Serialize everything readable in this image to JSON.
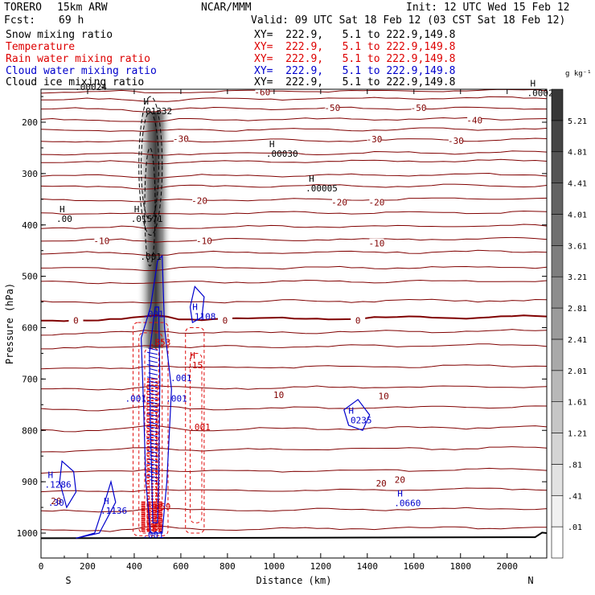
{
  "header": {
    "exp_name": "TORERO",
    "model": "15km ARW",
    "center": "NCAR/MMM",
    "init": "Init: 12 UTC Wed 15 Feb 12",
    "fcst_label": "Fcst:",
    "fcst_value": "69 h",
    "valid": "Valid: 09 UTC Sat 18 Feb 12 (03 CST Sat 18 Feb 12)"
  },
  "fields": [
    {
      "name": "Snow mixing ratio",
      "xy": "",
      "color": "#000000"
    },
    {
      "name": "Temperature",
      "xy": "XY=  222.9,   5.1 to 222.9,149.8",
      "color": "#dd0000"
    },
    {
      "name": "Rain water mixing ratio",
      "xy": "XY=  222.9,   5.1 to 222.9,149.8",
      "color": "#dd0000"
    },
    {
      "name": "Cloud water mixing ratio",
      "xy": "XY=  222.9,   5.1 to 222.9,149.8",
      "color": "#0000cc"
    },
    {
      "name": "Cloud ice mixing ratio",
      "xy": "XY=  222.9,   5.1 to 222.9,149.8",
      "color": "#000000"
    }
  ],
  "xy_first": "XY=  222.9,   5.1 to 222.9,149.8",
  "chart_data": {
    "type": "cross-section contour",
    "xlabel": "Distance (km)",
    "ylabel": "Pressure (hPa)",
    "x_ticks": [
      0,
      200,
      400,
      600,
      800,
      1000,
      1200,
      1400,
      1600,
      1800,
      2000
    ],
    "y_ticks": [
      200,
      300,
      400,
      500,
      600,
      700,
      800,
      900,
      1000
    ],
    "xlim": [
      0,
      2170
    ],
    "ylim": [
      1045,
      115
    ],
    "left_end": "S",
    "right_end": "N",
    "temperature_contours": [
      {
        "p": 128,
        "label": ""
      },
      {
        "p": 141,
        "label": "-60"
      },
      {
        "p": 156,
        "label": ""
      },
      {
        "p": 175,
        "label": "-50"
      },
      {
        "p": 196,
        "label": "-40"
      },
      {
        "p": 216,
        "label": ""
      },
      {
        "p": 237,
        "label": "-30"
      },
      {
        "p": 262,
        "label": ""
      },
      {
        "p": 278,
        "label": ""
      },
      {
        "p": 305,
        "label": ""
      },
      {
        "p": 326,
        "label": ""
      },
      {
        "p": 352,
        "label": "-20"
      },
      {
        "p": 378,
        "label": ""
      },
      {
        "p": 405,
        "label": ""
      },
      {
        "p": 430,
        "label": "-10"
      },
      {
        "p": 455,
        "label": ""
      },
      {
        "p": 485,
        "label": ""
      },
      {
        "p": 512,
        "label": ""
      },
      {
        "p": 550,
        "label": ""
      },
      {
        "p": 585,
        "label": "0"
      },
      {
        "p": 612,
        "label": ""
      },
      {
        "p": 640,
        "label": ""
      },
      {
        "p": 680,
        "label": ""
      },
      {
        "p": 720,
        "label": "10"
      },
      {
        "p": 760,
        "label": ""
      },
      {
        "p": 800,
        "label": ""
      },
      {
        "p": 840,
        "label": ""
      },
      {
        "p": 882,
        "label": "20"
      },
      {
        "p": 920,
        "label": ""
      },
      {
        "p": 958,
        "label": ""
      },
      {
        "p": 995,
        "label": ""
      }
    ],
    "contour_labels": [
      {
        "text": "-60",
        "x": 950,
        "p": 141
      },
      {
        "text": "-50",
        "x": 1250,
        "p": 172
      },
      {
        "text": "-50",
        "x": 1620,
        "p": 172
      },
      {
        "text": "-40",
        "x": 1860,
        "p": 196
      },
      {
        "text": "-30",
        "x": 600,
        "p": 232
      },
      {
        "text": "-30",
        "x": 1430,
        "p": 233
      },
      {
        "text": "-30",
        "x": 1780,
        "p": 236
      },
      {
        "text": "-20",
        "x": 680,
        "p": 353
      },
      {
        "text": "-20",
        "x": 1280,
        "p": 356
      },
      {
        "text": "-20",
        "x": 1440,
        "p": 356
      },
      {
        "text": "-10",
        "x": 260,
        "p": 431
      },
      {
        "text": "-10",
        "x": 700,
        "p": 431
      },
      {
        "text": "-10",
        "x": 1440,
        "p": 436
      },
      {
        "text": "0",
        "x": 150,
        "p": 586
      },
      {
        "text": "0",
        "x": 790,
        "p": 586
      },
      {
        "text": "0",
        "x": 1360,
        "p": 586
      },
      {
        "text": "10",
        "x": 1020,
        "p": 731
      },
      {
        "text": "10",
        "x": 1470,
        "p": 733
      },
      {
        "text": "20",
        "x": 1460,
        "p": 903
      },
      {
        "text": "20",
        "x": 1540,
        "p": 896
      },
      {
        "text": "20",
        "x": 65,
        "p": 937
      }
    ],
    "maxima": [
      {
        "text": ".00020",
        "x": 2120,
        "p": 140,
        "mark": "H"
      },
      {
        "text": ".00024",
        "x": 180,
        "p": 128,
        "mark": ""
      },
      {
        "text": ".01332",
        "x": 460,
        "p": 175,
        "mark": "H"
      },
      {
        "text": ".00030",
        "x": 1000,
        "p": 258,
        "mark": "H"
      },
      {
        "text": ".00005",
        "x": 1170,
        "p": 325,
        "mark": "H"
      },
      {
        "text": ".00",
        "x": 100,
        "p": 385,
        "mark": "H"
      },
      {
        "text": ".01571",
        "x": 420,
        "p": 385,
        "mark": "H"
      },
      {
        "text": ".001",
        "x": 460,
        "p": 458,
        "mark": ""
      },
      {
        "text": ".001",
        "x": 470,
        "p": 570,
        "mark": ""
      },
      {
        "text": ".1108",
        "x": 670,
        "p": 575,
        "mark": "H"
      },
      {
        "text": ".853",
        "x": 500,
        "p": 625,
        "mark": ""
      },
      {
        "text": ".15",
        "x": 660,
        "p": 670,
        "mark": "H"
      },
      {
        "text": ".001",
        "x": 590,
        "p": 695,
        "mark": ""
      },
      {
        "text": ".001",
        "x": 570,
        "p": 735,
        "mark": ""
      },
      {
        "text": ".001",
        "x": 395,
        "p": 735,
        "mark": ""
      },
      {
        "text": ".001",
        "x": 670,
        "p": 790,
        "mark": ""
      },
      {
        "text": ".0235",
        "x": 1340,
        "p": 777,
        "mark": "H"
      },
      {
        "text": ".1286",
        "x": 50,
        "p": 902,
        "mark": "H"
      },
      {
        "text": ".30",
        "x": 65,
        "p": 937,
        "mark": ""
      },
      {
        "text": ".1136",
        "x": 290,
        "p": 953,
        "mark": "H"
      },
      {
        "text": ".659",
        "x": 500,
        "p": 945,
        "mark": ""
      },
      {
        "text": ".0660",
        "x": 1550,
        "p": 938,
        "mark": "H"
      },
      {
        "text": ".001",
        "x": 470,
        "p": 1000,
        "mark": ""
      }
    ],
    "colorbar": {
      "unit": "g kg⁻¹",
      "labels": [
        ".01",
        ".41",
        ".81",
        "1.21",
        "1.61",
        "2.01",
        "2.41",
        "2.81",
        "3.21",
        "3.61",
        "4.01",
        "4.41",
        "4.81",
        "5.21"
      ]
    }
  }
}
